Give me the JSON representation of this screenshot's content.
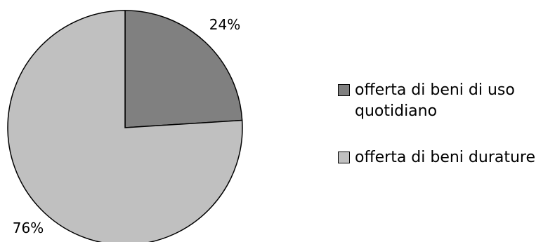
{
  "chart_data": {
    "type": "pie",
    "title": "",
    "start_angle_deg": 0,
    "direction": "clockwise",
    "slices": [
      {
        "label": "offerta di beni di uso quotidiano",
        "value": 24,
        "value_label": "24%",
        "color": "#808080"
      },
      {
        "label": "offerta di beni durature",
        "value": 76,
        "value_label": "76%",
        "color": "#c0c0c0"
      }
    ],
    "legend": {
      "position": "right"
    },
    "edge_color": "#000000"
  }
}
